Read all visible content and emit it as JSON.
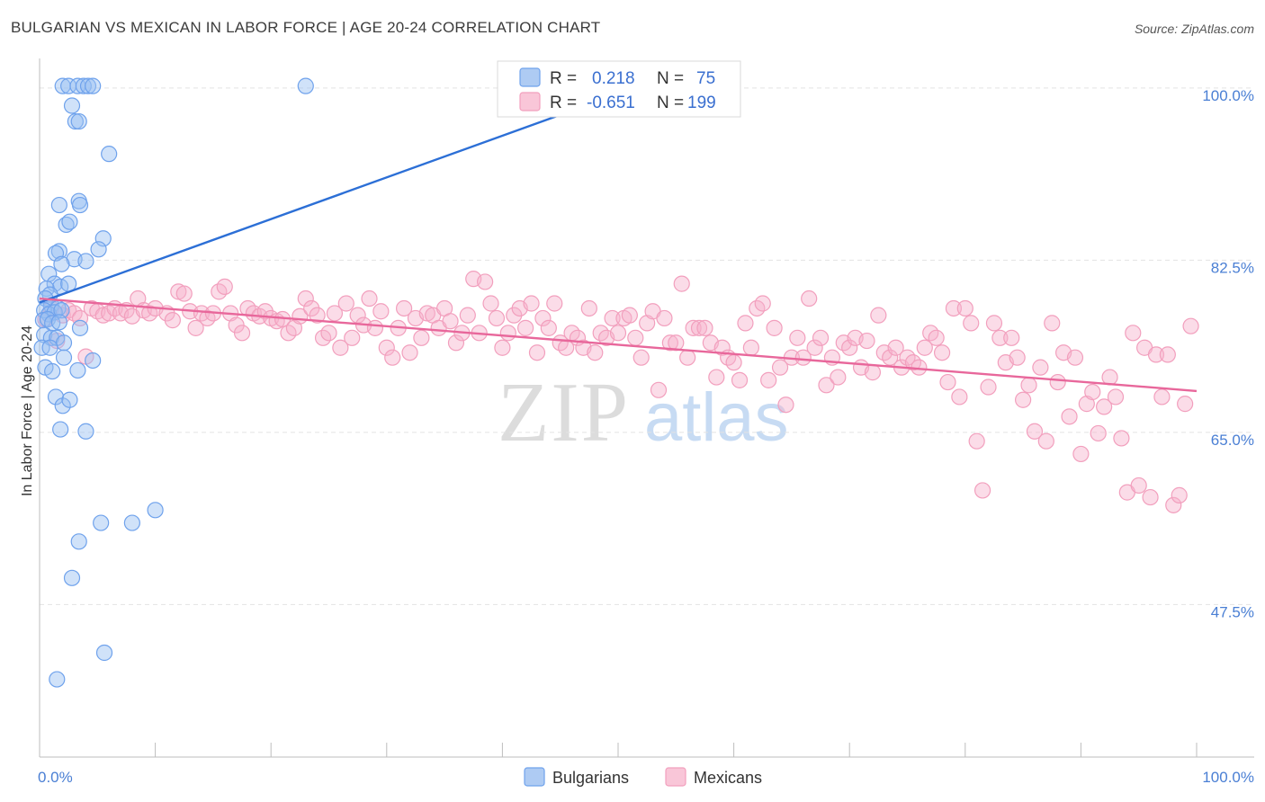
{
  "title": "BULGARIAN VS MEXICAN IN LABOR FORCE | AGE 20-24 CORRELATION CHART",
  "source": "Source: ZipAtlas.com",
  "colors": {
    "bulgarians": "#6fa2ec",
    "mexicans": "#f29fbd",
    "bulgarians_line": "#2c6fd6",
    "mexicans_line": "#e8679b",
    "tick": "#4a7fd4"
  },
  "chart_data": {
    "type": "scatter",
    "title": "BULGARIAN VS MEXICAN IN LABOR FORCE | AGE 20-24 CORRELATION CHART",
    "xlabel": "",
    "ylabel": "In Labor Force | Age 20-24",
    "xlim": [
      0,
      100
    ],
    "ylim": [
      32,
      103
    ],
    "x_tick_labels": [
      "0.0%",
      "100.0%"
    ],
    "y_ticks": [
      47.5,
      65.0,
      82.5,
      100.0
    ],
    "y_tick_labels": [
      "47.5%",
      "65.0%",
      "82.5%",
      "100.0%"
    ],
    "legend": {
      "rows": [
        {
          "r_label": "R =",
          "r_value": "0.218",
          "n_label": "N =",
          "n_value": "75"
        },
        {
          "r_label": "R =",
          "r_value": "-0.651",
          "n_label": "N =",
          "n_value": "199"
        }
      ]
    },
    "series": [
      {
        "name": "Bulgarians",
        "trend": [
          [
            0,
            78.2
          ],
          [
            55,
            101.5
          ]
        ],
        "points": [
          [
            2,
            100.2
          ],
          [
            2.5,
            100.2
          ],
          [
            3.3,
            100.2
          ],
          [
            3.8,
            100.2
          ],
          [
            4.2,
            100.2
          ],
          [
            4.6,
            100.2
          ],
          [
            23,
            100.2
          ],
          [
            2.8,
            98.2
          ],
          [
            3.1,
            96.6
          ],
          [
            3.4,
            96.6
          ],
          [
            6,
            93.3
          ],
          [
            1.7,
            88.1
          ],
          [
            3.4,
            88.5
          ],
          [
            3.5,
            88.1
          ],
          [
            2.3,
            86.1
          ],
          [
            2.6,
            86.4
          ],
          [
            5.5,
            84.7
          ],
          [
            5.1,
            83.6
          ],
          [
            1.7,
            83.4
          ],
          [
            1.4,
            83.2
          ],
          [
            3,
            82.6
          ],
          [
            4,
            82.4
          ],
          [
            1.9,
            82.1
          ],
          [
            0.8,
            81.1
          ],
          [
            1.3,
            80.1
          ],
          [
            1.8,
            79.8
          ],
          [
            2.5,
            80.1
          ],
          [
            0.6,
            79.6
          ],
          [
            0.9,
            79
          ],
          [
            0.5,
            78.6
          ],
          [
            1,
            77.9
          ],
          [
            1.6,
            77.6
          ],
          [
            0.4,
            77.4
          ],
          [
            0.8,
            77
          ],
          [
            1.3,
            77.2
          ],
          [
            1.9,
            77.4
          ],
          [
            0.3,
            76.4
          ],
          [
            0.7,
            76.5
          ],
          [
            1.1,
            76.1
          ],
          [
            1.7,
            76.2
          ],
          [
            3.5,
            75.6
          ],
          [
            0.4,
            74.9
          ],
          [
            1,
            74.6
          ],
          [
            1.5,
            74.6
          ],
          [
            2.1,
            74.1
          ],
          [
            0.2,
            73.6
          ],
          [
            0.9,
            73.6
          ],
          [
            2.1,
            72.6
          ],
          [
            4.6,
            72.3
          ],
          [
            0.5,
            71.6
          ],
          [
            1.1,
            71.2
          ],
          [
            3.3,
            71.3
          ],
          [
            1.4,
            68.6
          ],
          [
            2,
            67.7
          ],
          [
            2.6,
            68.3
          ],
          [
            1.8,
            65.3
          ],
          [
            4,
            65.1
          ],
          [
            5.3,
            55.8
          ],
          [
            8,
            55.8
          ],
          [
            10,
            57.1
          ],
          [
            3.4,
            53.9
          ],
          [
            2.8,
            50.2
          ],
          [
            5.6,
            42.6
          ],
          [
            1.5,
            39.9
          ]
        ]
      },
      {
        "name": "Mexicans",
        "trend": [
          [
            0,
            78.6
          ],
          [
            100,
            69.2
          ]
        ],
        "points": [
          [
            0.5,
            76.5
          ],
          [
            1,
            77.6
          ],
          [
            1.5,
            74.3
          ],
          [
            2,
            76.9
          ],
          [
            2.5,
            77.4
          ],
          [
            3,
            77.1
          ],
          [
            3.5,
            76.6
          ],
          [
            4,
            72.7
          ],
          [
            4.5,
            77.6
          ],
          [
            5,
            77.3
          ],
          [
            5.5,
            76.9
          ],
          [
            6,
            77.1
          ],
          [
            6.5,
            77.6
          ],
          [
            7,
            77.1
          ],
          [
            7.5,
            77.4
          ],
          [
            8,
            76.8
          ],
          [
            8.5,
            78.6
          ],
          [
            9,
            77.4
          ],
          [
            9.5,
            77.1
          ],
          [
            10,
            77.6
          ],
          [
            11,
            77.1
          ],
          [
            11.5,
            76.4
          ],
          [
            12,
            79.3
          ],
          [
            12.5,
            79.1
          ],
          [
            13,
            77.3
          ],
          [
            13.5,
            75.6
          ],
          [
            14,
            77.1
          ],
          [
            14.5,
            76.6
          ],
          [
            15,
            77.1
          ],
          [
            15.5,
            79.3
          ],
          [
            16,
            79.8
          ],
          [
            16.5,
            77.1
          ],
          [
            17,
            75.9
          ],
          [
            17.5,
            75.1
          ],
          [
            18,
            77.6
          ],
          [
            18.5,
            77.1
          ],
          [
            19,
            76.8
          ],
          [
            19.5,
            77.3
          ],
          [
            20,
            76.6
          ],
          [
            20.5,
            76.3
          ],
          [
            21,
            76.5
          ],
          [
            21.5,
            75.1
          ],
          [
            22,
            75.6
          ],
          [
            22.5,
            76.8
          ],
          [
            23,
            78.6
          ],
          [
            23.5,
            77.6
          ],
          [
            24,
            76.9
          ],
          [
            24.5,
            74.6
          ],
          [
            25,
            75.1
          ],
          [
            25.5,
            77.1
          ],
          [
            26,
            73.6
          ],
          [
            26.5,
            78.1
          ],
          [
            27,
            74.6
          ],
          [
            27.5,
            76.9
          ],
          [
            28,
            75.9
          ],
          [
            28.5,
            78.6
          ],
          [
            29,
            75.6
          ],
          [
            29.5,
            77.3
          ],
          [
            30,
            73.6
          ],
          [
            30.5,
            72.6
          ],
          [
            31,
            75.6
          ],
          [
            31.5,
            77.6
          ],
          [
            32,
            73.1
          ],
          [
            32.5,
            76.6
          ],
          [
            33,
            74.6
          ],
          [
            33.5,
            77.1
          ],
          [
            34,
            76.9
          ],
          [
            34.5,
            75.6
          ],
          [
            35,
            77.6
          ],
          [
            35.5,
            76.3
          ],
          [
            36,
            74.1
          ],
          [
            36.5,
            75.1
          ],
          [
            37,
            76.9
          ],
          [
            37.5,
            80.6
          ],
          [
            38,
            75.1
          ],
          [
            38.5,
            80.3
          ],
          [
            39,
            78.1
          ],
          [
            39.5,
            76.6
          ],
          [
            40,
            73.6
          ],
          [
            40.5,
            75.1
          ],
          [
            41,
            76.9
          ],
          [
            41.5,
            77.6
          ],
          [
            42,
            75.6
          ],
          [
            42.5,
            78.1
          ],
          [
            43,
            73.1
          ],
          [
            43.5,
            76.6
          ],
          [
            44,
            75.6
          ],
          [
            44.5,
            78.1
          ],
          [
            45,
            74.1
          ],
          [
            45.5,
            73.6
          ],
          [
            46,
            75.1
          ],
          [
            46.5,
            74.6
          ],
          [
            47,
            73.6
          ],
          [
            47.5,
            77.6
          ],
          [
            48,
            73.1
          ],
          [
            48.5,
            75.1
          ],
          [
            49,
            74.6
          ],
          [
            49.5,
            76.6
          ],
          [
            50,
            75.1
          ],
          [
            50.5,
            76.6
          ],
          [
            51,
            76.9
          ],
          [
            51.5,
            74.6
          ],
          [
            52,
            72.6
          ],
          [
            52.5,
            76.1
          ],
          [
            53,
            77.3
          ],
          [
            53.5,
            69.3
          ],
          [
            54,
            76.6
          ],
          [
            54.5,
            74.1
          ],
          [
            55,
            74.1
          ],
          [
            55.5,
            80.1
          ],
          [
            56,
            72.6
          ],
          [
            56.5,
            75.6
          ],
          [
            57,
            75.6
          ],
          [
            57.5,
            75.6
          ],
          [
            58,
            74.1
          ],
          [
            58.5,
            70.6
          ],
          [
            59,
            73.6
          ],
          [
            59.5,
            72.6
          ],
          [
            60,
            72.1
          ],
          [
            60.5,
            70.3
          ],
          [
            61,
            76.1
          ],
          [
            61.5,
            73.6
          ],
          [
            62,
            77.6
          ],
          [
            62.5,
            78.1
          ],
          [
            63,
            70.3
          ],
          [
            63.5,
            75.6
          ],
          [
            64,
            71.6
          ],
          [
            64.5,
            67.8
          ],
          [
            65,
            72.6
          ],
          [
            65.5,
            74.6
          ],
          [
            66,
            72.6
          ],
          [
            66.5,
            78.6
          ],
          [
            67,
            73.6
          ],
          [
            67.5,
            74.6
          ],
          [
            68,
            69.8
          ],
          [
            68.5,
            72.6
          ],
          [
            69,
            70.6
          ],
          [
            69.5,
            74.1
          ],
          [
            70,
            73.6
          ],
          [
            70.5,
            74.6
          ],
          [
            71,
            71.6
          ],
          [
            71.5,
            74.3
          ],
          [
            72,
            71.1
          ],
          [
            72.5,
            76.9
          ],
          [
            73,
            73.1
          ],
          [
            73.5,
            72.6
          ],
          [
            74,
            73.6
          ],
          [
            74.5,
            71.6
          ],
          [
            75,
            72.6
          ],
          [
            75.5,
            72.1
          ],
          [
            76,
            71.6
          ],
          [
            76.5,
            73.6
          ],
          [
            77,
            75.1
          ],
          [
            77.5,
            74.6
          ],
          [
            78,
            73.1
          ],
          [
            78.5,
            70.1
          ],
          [
            79,
            77.6
          ],
          [
            79.5,
            68.6
          ],
          [
            80,
            77.6
          ],
          [
            80.5,
            76.1
          ],
          [
            81,
            64.1
          ],
          [
            81.5,
            59.1
          ],
          [
            82,
            69.6
          ],
          [
            82.5,
            76.1
          ],
          [
            83,
            74.6
          ],
          [
            83.5,
            72.1
          ],
          [
            84,
            74.6
          ],
          [
            84.5,
            72.6
          ],
          [
            85,
            68.3
          ],
          [
            85.5,
            69.8
          ],
          [
            86,
            65.1
          ],
          [
            86.5,
            71.6
          ],
          [
            87,
            64.1
          ],
          [
            87.5,
            76.1
          ],
          [
            88,
            70.1
          ],
          [
            88.5,
            73.1
          ],
          [
            89,
            66.6
          ],
          [
            89.5,
            72.6
          ],
          [
            90,
            62.8
          ],
          [
            90.5,
            67.9
          ],
          [
            91,
            69.1
          ],
          [
            91.5,
            64.9
          ],
          [
            92,
            67.6
          ],
          [
            92.5,
            70.6
          ],
          [
            93,
            68.6
          ],
          [
            93.5,
            64.4
          ],
          [
            94,
            58.9
          ],
          [
            94.5,
            75.1
          ],
          [
            95,
            59.6
          ],
          [
            95.5,
            73.6
          ],
          [
            96,
            58.4
          ],
          [
            96.5,
            72.9
          ],
          [
            97,
            68.6
          ],
          [
            97.5,
            72.9
          ],
          [
            98,
            57.6
          ],
          [
            98.5,
            58.6
          ],
          [
            99,
            67.9
          ],
          [
            99.5,
            75.8
          ]
        ]
      }
    ]
  },
  "bottom_legend": {
    "bulgarians": "Bulgarians",
    "mexicans": "Mexicans"
  },
  "watermark": {
    "zip": "ZIP",
    "atlas": "atlas"
  }
}
